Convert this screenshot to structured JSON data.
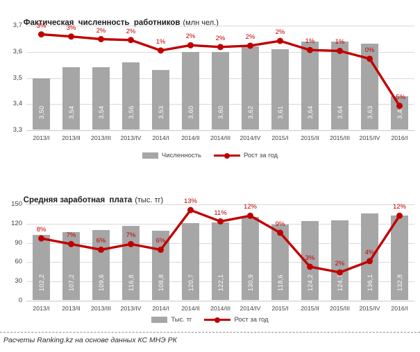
{
  "footer": {
    "text": "Расчеты Ranking.kz на основе данных  КС МНЭ РК"
  },
  "colors": {
    "bar": "#a6a6a6",
    "line": "#c00000",
    "grid": "#d9d9d9",
    "axis_text": "#404040",
    "bar_value_text": "#ffffff"
  },
  "chart_data": [
    {
      "type": "bar",
      "title_bold": "Фактическая  численность  работников",
      "title_note": "(млн чел.)",
      "categories": [
        "2013/I",
        "2013/II",
        "2013/III",
        "2013/IV",
        "2014/I",
        "2014/II",
        "2014/III",
        "2014/IV",
        "2015/I",
        "2015/II",
        "2015/III",
        "2015/IV",
        "2016/I"
      ],
      "ylim": [
        3.3,
        3.7
      ],
      "yticks": [
        {
          "label": "3,7",
          "value": 3.7
        },
        {
          "label": "3,6",
          "value": 3.6
        },
        {
          "label": "3,5",
          "value": 3.5
        },
        {
          "label": "3,4",
          "value": 3.4
        },
        {
          "label": "3,3",
          "value": 3.3
        }
      ],
      "grid": true,
      "legend_position": "bottom",
      "series": [
        {
          "name": "Численность",
          "kind": "bar",
          "values": [
            3.5,
            3.54,
            3.54,
            3.56,
            3.53,
            3.6,
            3.6,
            3.62,
            3.61,
            3.64,
            3.64,
            3.63,
            3.43
          ],
          "labels": [
            "3,50",
            "3,54",
            "3,54",
            "3,56",
            "3,53",
            "3,60",
            "3,60",
            "3,62",
            "3,61",
            "3,64",
            "3,64",
            "3,63",
            "3,43"
          ]
        },
        {
          "name": "Рост за год",
          "kind": "line",
          "values": [
            3,
            3,
            2,
            2,
            1,
            2,
            2,
            2,
            2,
            1,
            1,
            0,
            -5
          ],
          "labels": [
            "3%",
            "3%",
            "2%",
            "2%",
            "1%",
            "2%",
            "2%",
            "2%",
            "2%",
            "1%",
            "1%",
            "0%",
            "-5%"
          ],
          "plot_values": [
            3.0,
            2.75,
            2.45,
            2.35,
            1.15,
            1.75,
            1.55,
            1.7,
            2.25,
            1.2,
            1.1,
            0.2,
            -5.2
          ]
        }
      ]
    },
    {
      "type": "bar",
      "title_bold": "Средняя заработная  плата",
      "title_note": "(тыс. тг)",
      "categories": [
        "2013/I",
        "2013/II",
        "2013/III",
        "2013/IV",
        "2014/I",
        "2014/II",
        "2014/III",
        "2014/IV",
        "2015/I",
        "2015/II",
        "2015/III",
        "2015/IV",
        "2016/I"
      ],
      "ylim": [
        0,
        150
      ],
      "yticks": [
        {
          "label": "150",
          "value": 150
        },
        {
          "label": "120",
          "value": 120
        },
        {
          "label": "90",
          "value": 90
        },
        {
          "label": "60",
          "value": 60
        },
        {
          "label": "30",
          "value": 30
        },
        {
          "label": "0",
          "value": 0
        }
      ],
      "grid": true,
      "legend_position": "bottom",
      "series": [
        {
          "name": "Тыс. тг",
          "kind": "bar",
          "values": [
            102.2,
            107.2,
            109.6,
            116.8,
            108.8,
            120.7,
            122.1,
            130.9,
            118.6,
            124.2,
            124.7,
            136.1,
            132.8
          ],
          "labels": [
            "102,2",
            "107,2",
            "109,6",
            "116,8",
            "108,8",
            "120,7",
            "122,1",
            "130,9",
            "118,6",
            "124,2",
            "124,7",
            "136,1",
            "132,8"
          ]
        },
        {
          "name": "Рост за год",
          "kind": "line",
          "values": [
            8,
            7,
            6,
            7,
            6,
            13,
            11,
            12,
            9,
            3,
            2,
            4,
            12
          ],
          "labels": [
            "8%",
            "7%",
            "6%",
            "7%",
            "6%",
            "13%",
            "11%",
            "12%",
            "9%",
            "3%",
            "2%",
            "4%",
            "12%"
          ],
          "plot_values": [
            8,
            7,
            6,
            7,
            6,
            13,
            11,
            12,
            9,
            3,
            2,
            4,
            12
          ]
        }
      ]
    }
  ]
}
